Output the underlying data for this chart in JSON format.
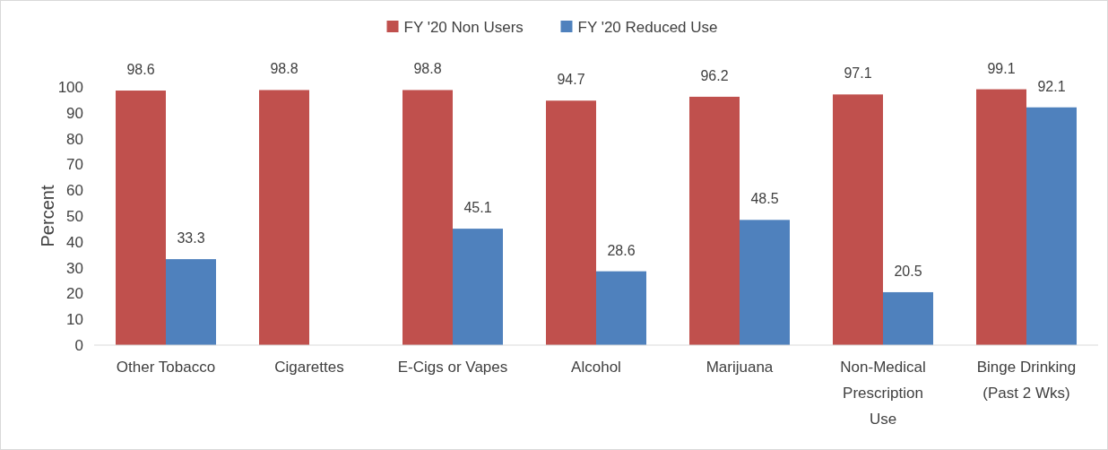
{
  "chart_data": {
    "type": "bar",
    "ylabel": "Percent",
    "categories": [
      "Other Tobacco",
      "Cigarettes",
      "E-Cigs or Vapes",
      "Alcohol",
      "Marijuana",
      "Non-Medical Prescription Use",
      "Binge Drinking (Past 2 Wks)"
    ],
    "series": [
      {
        "name": "FY '20 Non Users",
        "color": "#c0504d",
        "values": [
          98.6,
          98.8,
          98.8,
          94.7,
          96.2,
          97.1,
          99.1
        ]
      },
      {
        "name": "FY '20 Reduced Use",
        "color": "#4f81bd",
        "values": [
          33.3,
          null,
          45.1,
          28.6,
          48.5,
          20.5,
          92.1
        ]
      }
    ],
    "ylim": [
      0,
      100
    ],
    "yticks": [
      0,
      10,
      20,
      30,
      40,
      50,
      60,
      70,
      80,
      90,
      100
    ],
    "data_labels": true,
    "legend": "top"
  }
}
